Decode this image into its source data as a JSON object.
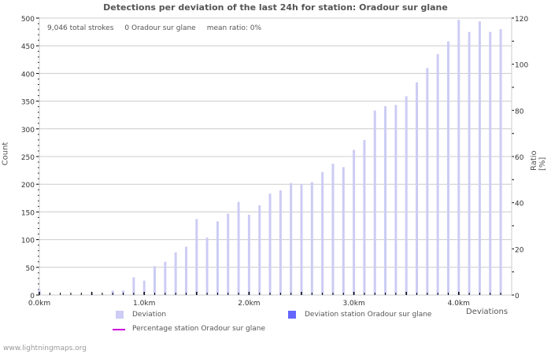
{
  "title": "Detections per deviation of the last 24h for station: Oradour sur glane",
  "info": {
    "total_strokes": "9,046 total strokes",
    "station_strokes": "0 Oradour sur glane",
    "mean_ratio": "mean ratio: 0%"
  },
  "axes": {
    "ylabel_left": "Count",
    "ylabel_right": "Ratio [%]",
    "xlabel": "Deviations"
  },
  "legend": {
    "deviation": "Deviation",
    "deviation_station": "Deviation station Oradour sur glane",
    "percentage_station": "Percentage station Oradour sur glane"
  },
  "colors": {
    "deviation": "#ccccf5",
    "deviation_station": "#6666ff",
    "percentage_line": "#cc00dd",
    "grid": "#cccccc"
  },
  "footer": "www.lightningmaps.org",
  "chart_data": {
    "type": "bar",
    "title": "Detections per deviation of the last 24h for station: Oradour sur glane",
    "xlabel": "Deviations",
    "ylabel": "Count",
    "y2label": "Ratio [%]",
    "ylim": [
      0,
      500
    ],
    "y2lim": [
      0,
      120
    ],
    "yticks": [
      0,
      50,
      100,
      150,
      200,
      250,
      300,
      350,
      400,
      450,
      500
    ],
    "y2ticks": [
      0,
      20,
      40,
      60,
      80,
      100,
      120
    ],
    "xtick_labels": [
      "0.0km",
      "1.0km",
      "2.0km",
      "3.0km",
      "4.0km"
    ],
    "grid": true,
    "legend_position": "bottom",
    "categories_km": [
      0.0,
      0.1,
      0.2,
      0.3,
      0.4,
      0.5,
      0.6,
      0.7,
      0.8,
      0.9,
      1.0,
      1.1,
      1.2,
      1.3,
      1.4,
      1.5,
      1.6,
      1.7,
      1.8,
      1.9,
      2.0,
      2.1,
      2.2,
      2.3,
      2.4,
      2.5,
      2.6,
      2.7,
      2.8,
      2.9,
      3.0,
      3.1,
      3.2,
      3.3,
      3.4,
      3.5,
      3.6,
      3.7,
      3.8,
      3.9,
      4.0,
      4.1,
      4.2,
      4.3,
      4.4
    ],
    "series": [
      {
        "name": "Deviation",
        "values": [
          10,
          0,
          0,
          0,
          1,
          2,
          1,
          8,
          8,
          32,
          26,
          52,
          60,
          77,
          87,
          137,
          104,
          133,
          147,
          168,
          145,
          162,
          183,
          189,
          202,
          200,
          204,
          222,
          237,
          231,
          262,
          280,
          333,
          341,
          343,
          359,
          384,
          410,
          435,
          458,
          497,
          475,
          494,
          475,
          480
        ]
      },
      {
        "name": "Deviation station Oradour sur glane",
        "values": [
          0,
          0,
          0,
          0,
          0,
          0,
          0,
          0,
          0,
          0,
          0,
          0,
          0,
          0,
          0,
          0,
          0,
          0,
          0,
          0,
          0,
          0,
          0,
          0,
          0,
          0,
          0,
          0,
          0,
          0,
          0,
          0,
          0,
          0,
          0,
          0,
          0,
          0,
          0,
          0,
          0,
          0,
          0,
          0,
          0
        ]
      },
      {
        "name": "Percentage station Oradour sur glane",
        "values": [
          0,
          0,
          0,
          0,
          0,
          0,
          0,
          0,
          0,
          0,
          0,
          0,
          0,
          0,
          0,
          0,
          0,
          0,
          0,
          0,
          0,
          0,
          0,
          0,
          0,
          0,
          0,
          0,
          0,
          0,
          0,
          0,
          0,
          0,
          0,
          0,
          0,
          0,
          0,
          0,
          0,
          0,
          0,
          0,
          0
        ]
      }
    ]
  }
}
